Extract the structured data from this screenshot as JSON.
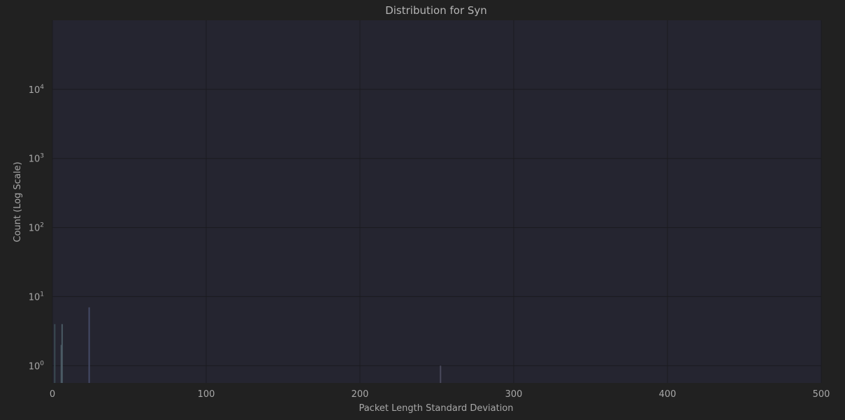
{
  "chart_data": {
    "type": "bar",
    "title": "Distribution for Syn",
    "xlabel": "Packet Length Standard Deviation",
    "ylabel": "Count (Log Scale)",
    "xlim": [
      0,
      500
    ],
    "ylim_log10": [
      -0.25,
      5.0
    ],
    "y_scale": "log",
    "grid": true,
    "x_ticks": [
      "0",
      "100",
      "200",
      "300",
      "400",
      "500"
    ],
    "x_tick_values": [
      0,
      100,
      200,
      300,
      400,
      500
    ],
    "y_ticks": [
      {
        "value": 1,
        "base": "10",
        "exp": "0"
      },
      {
        "value": 10,
        "base": "10",
        "exp": "1"
      },
      {
        "value": 100,
        "base": "10",
        "exp": "2"
      },
      {
        "value": 1000,
        "base": "10",
        "exp": "3"
      },
      {
        "value": 10000,
        "base": "10",
        "exp": "4"
      }
    ],
    "bars": [
      {
        "x": 1.5,
        "count": 4,
        "color": "#3a4a52"
      },
      {
        "x": 5.8,
        "count": 2,
        "color": "#4a5a64"
      },
      {
        "x": 6.3,
        "count": 4,
        "color": "#4a5a64"
      },
      {
        "x": 23.9,
        "count": 7,
        "color": "#444a66"
      },
      {
        "x": 252.4,
        "count": 1,
        "color": "#4a4a5c"
      }
    ],
    "colors": {
      "plot_bg": "#252530",
      "page_bg": "#212121"
    }
  }
}
